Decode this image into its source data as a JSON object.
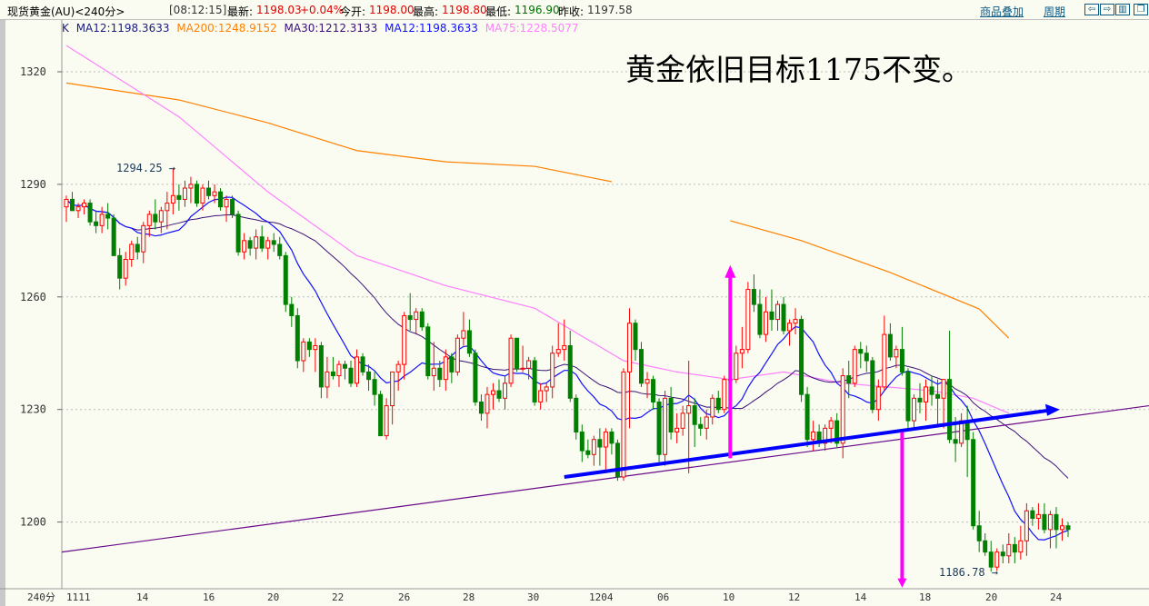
{
  "header": {
    "symbol": "现货黄金(AU)<240分>",
    "time": "[08:12:15]",
    "latest_label": "最新:",
    "latest": "1198.03",
    "change": "+0.04%",
    "open_label": "今开:",
    "open": "1198.00",
    "high_label": "最高:",
    "high": "1198.80",
    "low_label": "最低:",
    "low": "1196.90",
    "prev_close_label": "昨收:",
    "prev_close": "1197.58",
    "overlay_link": "商品叠加",
    "period_link": "周期",
    "buttons": [
      "arrow-left-icon",
      "arrow-right-icon",
      "split-panel-icon",
      "restore-window-icon"
    ]
  },
  "legend": {
    "k": "K",
    "items": [
      {
        "text": "MA12:1198.3633",
        "color": "#1a1a80"
      },
      {
        "text": "MA200:1248.9152",
        "color": "#ff8000"
      },
      {
        "text": "MA30:1212.3133",
        "color": "#3a1078"
      },
      {
        "text": "MA12:1198.3633",
        "color": "#1010ff"
      },
      {
        "text": "MA75:1228.5077",
        "color": "#ff80ff"
      }
    ]
  },
  "annotation": "黄金依旧目标1175不变。",
  "chart_data": {
    "type": "candlestick",
    "period_label": "240分",
    "ylim": [
      1180,
      1330
    ],
    "yticks": [
      "1320",
      "1290",
      "1260",
      "1230",
      "1200"
    ],
    "ytick_values": [
      1320,
      1290,
      1260,
      1230,
      1200
    ],
    "xticks": [
      "1111",
      "14",
      "16",
      "20",
      "22",
      "26",
      "28",
      "30",
      "1204",
      "06",
      "10",
      "12",
      "14",
      "18",
      "20",
      "24"
    ],
    "grid": true,
    "colors": {
      "up": "#ff0000",
      "down": "#008000",
      "ma12": "#1010ff",
      "ma30": "#3a1078",
      "ma75": "#ff80ff",
      "ma200": "#ff8000",
      "trend_thin": "#6a0a8a",
      "trend_thick": "#0000ff",
      "arrow": "#ff00ff"
    },
    "high_label": "1294.25",
    "low_label": "1186.78",
    "candles_ohlc": [
      [
        1284,
        1287,
        1280,
        1286
      ],
      [
        1286,
        1288,
        1283,
        1283
      ],
      [
        1283,
        1285,
        1281,
        1284
      ],
      [
        1284,
        1286,
        1282,
        1285
      ],
      [
        1285,
        1286,
        1279,
        1280
      ],
      [
        1280,
        1283,
        1277,
        1279
      ],
      [
        1279,
        1284,
        1277,
        1282
      ],
      [
        1282,
        1285,
        1278,
        1281
      ],
      [
        1281,
        1282,
        1272,
        1271
      ],
      [
        1271,
        1273,
        1262,
        1265
      ],
      [
        1265,
        1272,
        1263,
        1270
      ],
      [
        1270,
        1275,
        1268,
        1274
      ],
      [
        1274,
        1276,
        1270,
        1272
      ],
      [
        1272,
        1280,
        1269,
        1279
      ],
      [
        1279,
        1283,
        1276,
        1282
      ],
      [
        1282,
        1286,
        1278,
        1280
      ],
      [
        1280,
        1284,
        1277,
        1283
      ],
      [
        1283,
        1288,
        1278,
        1285
      ],
      [
        1285,
        1294.25,
        1282,
        1287
      ],
      [
        1287,
        1290,
        1283,
        1286
      ],
      [
        1286,
        1291,
        1284,
        1289
      ],
      [
        1289,
        1292,
        1285,
        1290
      ],
      [
        1290,
        1291,
        1284,
        1285
      ],
      [
        1285,
        1290,
        1283,
        1289
      ],
      [
        1289,
        1291,
        1286,
        1287
      ],
      [
        1287,
        1290,
        1285,
        1288
      ],
      [
        1288,
        1289,
        1283,
        1284
      ],
      [
        1284,
        1287,
        1280,
        1286
      ],
      [
        1286,
        1287,
        1281,
        1282
      ],
      [
        1282,
        1283,
        1271,
        1272
      ],
      [
        1272,
        1277,
        1270,
        1275
      ],
      [
        1275,
        1276,
        1271,
        1273
      ],
      [
        1273,
        1278,
        1270,
        1276
      ],
      [
        1276,
        1279,
        1272,
        1273
      ],
      [
        1273,
        1276,
        1270,
        1275
      ],
      [
        1275,
        1277,
        1272,
        1274
      ],
      [
        1274,
        1276,
        1270,
        1271
      ],
      [
        1271,
        1272,
        1256,
        1258
      ],
      [
        1258,
        1260,
        1252,
        1255
      ],
      [
        1255,
        1257,
        1241,
        1243
      ],
      [
        1243,
        1249,
        1240,
        1248
      ],
      [
        1248,
        1249,
        1244,
        1246
      ],
      [
        1246,
        1249,
        1240,
        1247
      ],
      [
        1247,
        1248,
        1233,
        1236
      ],
      [
        1236,
        1244,
        1233,
        1240
      ],
      [
        1240,
        1244,
        1238,
        1239
      ],
      [
        1239,
        1243,
        1236,
        1242
      ],
      [
        1242,
        1243,
        1238,
        1241
      ],
      [
        1241,
        1243,
        1236,
        1237
      ],
      [
        1237,
        1246,
        1236,
        1244
      ],
      [
        1244,
        1245,
        1239,
        1240
      ],
      [
        1240,
        1242,
        1235,
        1238
      ],
      [
        1238,
        1240,
        1231,
        1234
      ],
      [
        1234,
        1235,
        1223,
        1223
      ],
      [
        1223,
        1233,
        1222,
        1231
      ],
      [
        1231,
        1240,
        1226,
        1240
      ],
      [
        1240,
        1243,
        1235,
        1242
      ],
      [
        1242,
        1256,
        1238,
        1255
      ],
      [
        1255,
        1261,
        1251,
        1254
      ],
      [
        1254,
        1257,
        1250,
        1256
      ],
      [
        1256,
        1257,
        1251,
        1252
      ],
      [
        1252,
        1253,
        1238,
        1239
      ],
      [
        1239,
        1248,
        1235,
        1241
      ],
      [
        1241,
        1243,
        1236,
        1238
      ],
      [
        1238,
        1246,
        1235,
        1244
      ],
      [
        1244,
        1245,
        1237,
        1240
      ],
      [
        1240,
        1250,
        1239,
        1249
      ],
      [
        1249,
        1256,
        1247,
        1251
      ],
      [
        1251,
        1254,
        1244,
        1245
      ],
      [
        1245,
        1246,
        1231,
        1232
      ],
      [
        1232,
        1234,
        1227,
        1229
      ],
      [
        1229,
        1236,
        1225,
        1234
      ],
      [
        1234,
        1237,
        1230,
        1235
      ],
      [
        1235,
        1238,
        1232,
        1233
      ],
      [
        1233,
        1239,
        1230,
        1237
      ],
      [
        1237,
        1250,
        1236,
        1249
      ],
      [
        1249,
        1249,
        1240,
        1241
      ],
      [
        1241,
        1247,
        1240,
        1241
      ],
      [
        1241,
        1244,
        1238,
        1243
      ],
      [
        1243,
        1244,
        1231,
        1232
      ],
      [
        1232,
        1237,
        1230,
        1235
      ],
      [
        1235,
        1237,
        1232,
        1236
      ],
      [
        1236,
        1247,
        1233,
        1245
      ],
      [
        1245,
        1253,
        1244,
        1246
      ],
      [
        1246,
        1254,
        1243,
        1247
      ],
      [
        1247,
        1251,
        1232,
        1233
      ],
      [
        1233,
        1234,
        1222,
        1224
      ],
      [
        1224,
        1226,
        1216,
        1219
      ],
      [
        1219,
        1222,
        1217,
        1218
      ],
      [
        1218,
        1223,
        1215,
        1222
      ],
      [
        1222,
        1225,
        1215,
        1220
      ],
      [
        1220,
        1225,
        1213,
        1224
      ],
      [
        1224,
        1225,
        1218,
        1221
      ],
      [
        1221,
        1222,
        1211,
        1212
      ],
      [
        1212,
        1241,
        1211,
        1240
      ],
      [
        1240,
        1257,
        1225,
        1253
      ],
      [
        1253,
        1254,
        1243,
        1246
      ],
      [
        1246,
        1248,
        1236,
        1237
      ],
      [
        1237,
        1240,
        1233,
        1238
      ],
      [
        1238,
        1239,
        1230,
        1232
      ],
      [
        1232,
        1233,
        1216,
        1218
      ],
      [
        1218,
        1235,
        1215,
        1233
      ],
      [
        1233,
        1236,
        1222,
        1224
      ],
      [
        1224,
        1229,
        1221,
        1225
      ],
      [
        1225,
        1231,
        1223,
        1229
      ],
      [
        1229,
        1243,
        1213,
        1231
      ],
      [
        1231,
        1233,
        1220,
        1226
      ],
      [
        1226,
        1228,
        1223,
        1225
      ],
      [
        1225,
        1230,
        1222,
        1228
      ],
      [
        1228,
        1234,
        1226,
        1233
      ],
      [
        1233,
        1235,
        1229,
        1230
      ],
      [
        1230,
        1239,
        1229,
        1238
      ],
      [
        1238,
        1242,
        1236,
        1238
      ],
      [
        1238,
        1247,
        1237,
        1245
      ],
      [
        1245,
        1252,
        1241,
        1246
      ],
      [
        1246,
        1264,
        1245,
        1262
      ],
      [
        1262,
        1266,
        1256,
        1258
      ],
      [
        1258,
        1262,
        1249,
        1250
      ],
      [
        1250,
        1260,
        1248,
        1256
      ],
      [
        1256,
        1262,
        1251,
        1254
      ],
      [
        1254,
        1259,
        1251,
        1258
      ],
      [
        1258,
        1260,
        1250,
        1251
      ],
      [
        1251,
        1254,
        1247,
        1253
      ],
      [
        1253,
        1257,
        1250,
        1254
      ],
      [
        1254,
        1255,
        1232,
        1234
      ],
      [
        1234,
        1236,
        1220,
        1222
      ],
      [
        1222,
        1227,
        1219,
        1224
      ],
      [
        1224,
        1226,
        1220,
        1221
      ],
      [
        1221,
        1226,
        1219,
        1225
      ],
      [
        1225,
        1228,
        1221,
        1227
      ],
      [
        1227,
        1229,
        1220,
        1221
      ],
      [
        1221,
        1241,
        1217,
        1239
      ],
      [
        1239,
        1243,
        1233,
        1237
      ],
      [
        1237,
        1247,
        1236,
        1246
      ],
      [
        1246,
        1248,
        1241,
        1245
      ],
      [
        1245,
        1247,
        1240,
        1243
      ],
      [
        1243,
        1244,
        1229,
        1230
      ],
      [
        1230,
        1238,
        1227,
        1236
      ],
      [
        1236,
        1255,
        1235,
        1250
      ],
      [
        1250,
        1253,
        1243,
        1244
      ],
      [
        1244,
        1247,
        1241,
        1246
      ],
      [
        1246,
        1252,
        1239,
        1240
      ],
      [
        1240,
        1241,
        1225,
        1227
      ],
      [
        1227,
        1234,
        1225,
        1233
      ],
      [
        1233,
        1237,
        1229,
        1232
      ],
      [
        1232,
        1238,
        1227,
        1236
      ],
      [
        1236,
        1239,
        1231,
        1234
      ],
      [
        1234,
        1238,
        1226,
        1233
      ],
      [
        1233,
        1238,
        1225,
        1238
      ],
      [
        1238,
        1251,
        1221,
        1222
      ],
      [
        1222,
        1228,
        1216,
        1221
      ],
      [
        1221,
        1229,
        1220,
        1227
      ],
      [
        1227,
        1231,
        1212,
        1222
      ],
      [
        1222,
        1224,
        1198,
        1199
      ],
      [
        1199,
        1203,
        1192,
        1195
      ],
      [
        1195,
        1197,
        1191,
        1192
      ],
      [
        1192,
        1195,
        1186.78,
        1188
      ],
      [
        1188,
        1193,
        1187,
        1192
      ],
      [
        1192,
        1194,
        1189,
        1191
      ],
      [
        1191,
        1197,
        1189,
        1194
      ],
      [
        1194,
        1196,
        1189,
        1192
      ],
      [
        1192,
        1199,
        1190,
        1195
      ],
      [
        1195,
        1205,
        1191,
        1203
      ],
      [
        1203,
        1204,
        1199,
        1201
      ],
      [
        1201,
        1205,
        1198,
        1202
      ],
      [
        1202,
        1205,
        1197,
        1198
      ],
      [
        1198,
        1203,
        1193,
        1202
      ],
      [
        1202,
        1204,
        1193,
        1198
      ],
      [
        1198,
        1201,
        1195,
        1199
      ],
      [
        1199,
        1200,
        1196,
        1198.03
      ]
    ],
    "ma75_points": [
      [
        0,
        1327
      ],
      [
        19,
        1308
      ],
      [
        34,
        1288
      ],
      [
        49,
        1271
      ],
      [
        64,
        1263
      ],
      [
        79,
        1257
      ],
      [
        94,
        1243
      ],
      [
        103,
        1240
      ],
      [
        112,
        1238
      ],
      [
        121,
        1240
      ],
      [
        131,
        1237
      ],
      [
        146,
        1235
      ],
      [
        153,
        1233
      ],
      [
        159,
        1229
      ]
    ],
    "ma200_segments": [
      [
        [
          0,
          1317
        ],
        [
          19,
          1312.5
        ],
        [
          34,
          1306.4
        ],
        [
          49,
          1299
        ],
        [
          64,
          1296
        ],
        [
          79,
          1294.8
        ],
        [
          92,
          1290.7
        ]
      ],
      [
        [
          112,
          1280.3
        ],
        [
          124,
          1275
        ],
        [
          139,
          1266.5
        ],
        [
          154,
          1256.8
        ],
        [
          159,
          1249
        ]
      ]
    ],
    "drawn_lines": {
      "thin_trendline": [
        [
          0,
          1192
        ],
        [
          174,
          1231
        ]
      ],
      "thick_trendline": [
        [
          84,
          1212
        ],
        [
          167,
          1230
        ]
      ],
      "up_arrow": [
        [
          112,
          1217
        ],
        [
          112,
          1268
        ]
      ],
      "down_arrow": [
        [
          141,
          1224
        ],
        [
          141,
          1183
        ]
      ]
    }
  }
}
